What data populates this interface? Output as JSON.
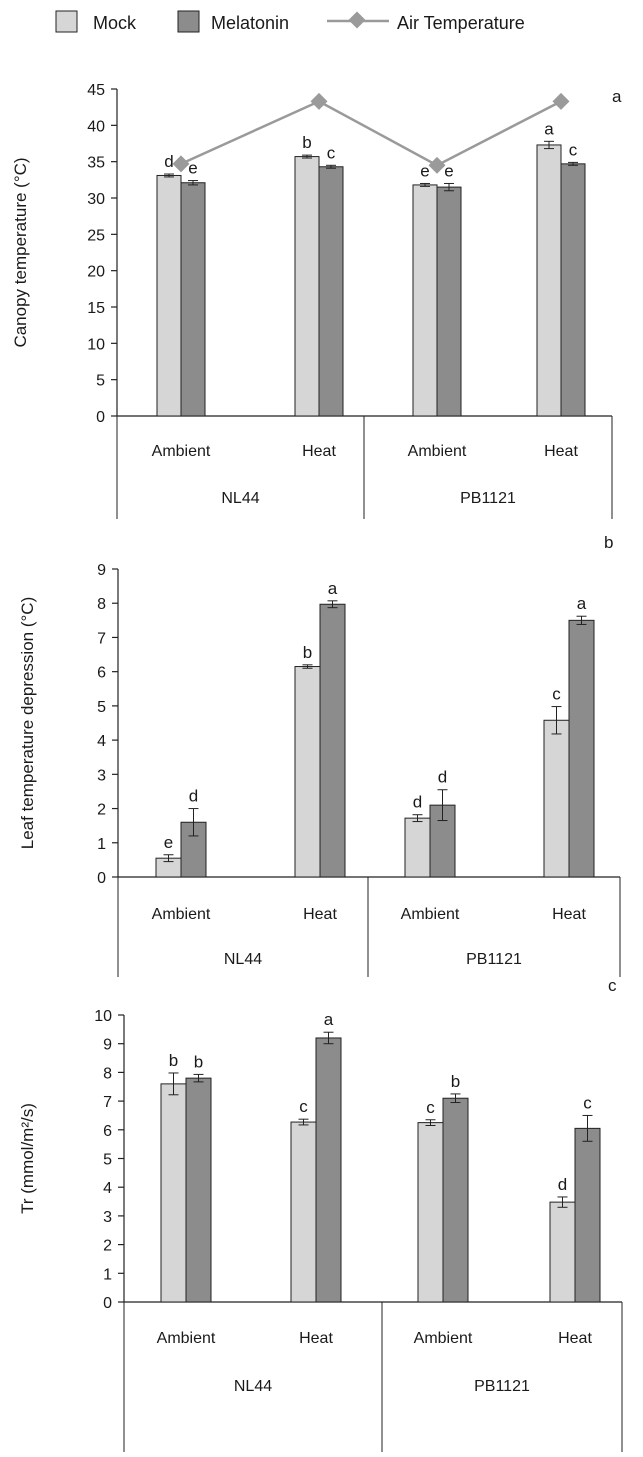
{
  "legend": {
    "mock": "Mock",
    "melatonin": "Melatonin",
    "air": "Air Temperature"
  },
  "colors": {
    "mock": "#d6d6d6",
    "melatonin": "#8c8c8c",
    "air": "#9a9a9a",
    "axis": "#222222"
  },
  "chart_data": [
    {
      "type": "bar",
      "panel": "a",
      "ylabel": "Canopy temperature (°C)",
      "ylim": [
        0,
        45
      ],
      "ystep": 5,
      "groups": [
        "NL44",
        "PB1121"
      ],
      "categories": [
        "Ambient",
        "Heat",
        "Ambient",
        "Heat"
      ],
      "series": [
        {
          "name": "Mock",
          "values": [
            33.1,
            35.7,
            31.8,
            37.3
          ],
          "errors": [
            0.2,
            0.2,
            0.2,
            0.5
          ],
          "letters": [
            "d",
            "b",
            "e",
            "a"
          ]
        },
        {
          "name": "Melatonin",
          "values": [
            32.1,
            34.3,
            31.5,
            34.7
          ],
          "errors": [
            0.3,
            0.2,
            0.5,
            0.2
          ],
          "letters": [
            "e",
            "c",
            "e",
            "c"
          ]
        }
      ],
      "line": {
        "name": "Air Temperature",
        "values": [
          34.7,
          43.3,
          34.5,
          43.3
        ]
      }
    },
    {
      "type": "bar",
      "panel": "b",
      "ylabel": "Leaf temperature depression (°C)",
      "ylim": [
        0,
        9
      ],
      "ystep": 1,
      "groups": [
        "NL44",
        "PB1121"
      ],
      "categories": [
        "Ambient",
        "Heat",
        "Ambient",
        "Heat"
      ],
      "series": [
        {
          "name": "Mock",
          "values": [
            0.55,
            6.15,
            1.72,
            4.58
          ],
          "errors": [
            0.1,
            0.05,
            0.1,
            0.4
          ],
          "letters": [
            "e",
            "b",
            "d",
            "c"
          ]
        },
        {
          "name": "Melatonin",
          "values": [
            1.6,
            7.97,
            2.1,
            7.5
          ],
          "errors": [
            0.4,
            0.1,
            0.45,
            0.12
          ],
          "letters": [
            "d",
            "a",
            "d",
            "a"
          ]
        }
      ]
    },
    {
      "type": "bar",
      "panel": "c",
      "ylabel": "Tr (mmol/m²/s)",
      "ylim": [
        0,
        10
      ],
      "ystep": 1,
      "groups": [
        "NL44",
        "PB1121"
      ],
      "categories": [
        "Ambient",
        "Heat",
        "Ambient",
        "Heat"
      ],
      "series": [
        {
          "name": "Mock",
          "values": [
            7.6,
            6.27,
            6.25,
            3.48
          ],
          "errors": [
            0.38,
            0.1,
            0.1,
            0.18
          ],
          "letters": [
            "b",
            "c",
            "c",
            "d"
          ]
        },
        {
          "name": "Melatonin",
          "values": [
            7.8,
            9.2,
            7.1,
            6.05
          ],
          "errors": [
            0.13,
            0.2,
            0.15,
            0.45
          ],
          "letters": [
            "b",
            "a",
            "b",
            "c"
          ]
        }
      ]
    }
  ]
}
